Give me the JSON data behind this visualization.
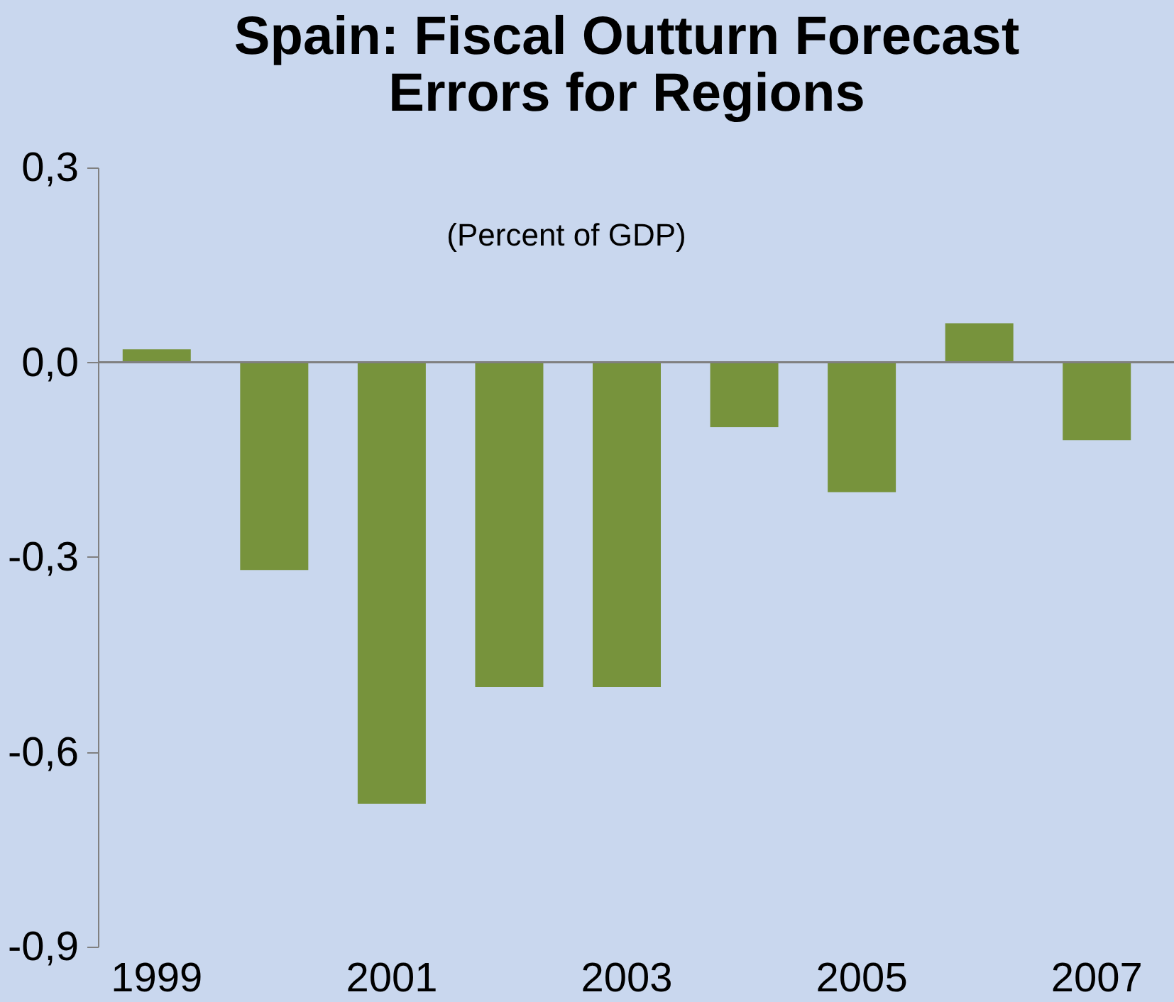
{
  "chart_data": {
    "type": "bar",
    "title": [
      "Spain: Fiscal Outturn Forecast",
      "Errors for Regions"
    ],
    "annotations": [
      "(Percent of GDP)"
    ],
    "categories": [
      "1999",
      null,
      "2001",
      null,
      "2003",
      null,
      "2005",
      null,
      "2007"
    ],
    "values": [
      0.02,
      -0.32,
      -0.68,
      -0.5,
      -0.5,
      -0.1,
      -0.2,
      0.06,
      -0.12
    ],
    "color": "#77933c",
    "ylim": [
      -0.9,
      0.3
    ],
    "yticks": [
      {
        "value": -0.9,
        "label": "-0,9"
      },
      {
        "value": -0.6,
        "label": "-0,6"
      },
      {
        "value": -0.3,
        "label": "-0,3"
      },
      {
        "value": 0.0,
        "label": "0,0"
      },
      {
        "value": 0.3,
        "label": "0,3"
      }
    ]
  }
}
